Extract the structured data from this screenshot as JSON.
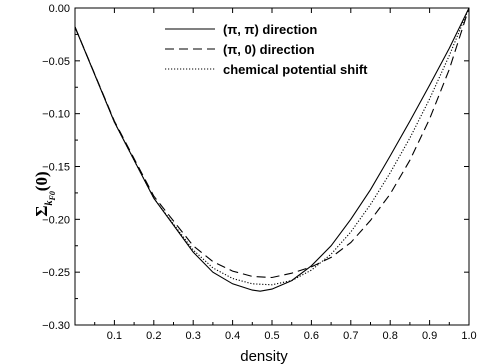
{
  "chart_data": {
    "type": "line",
    "xlabel": "density",
    "ylabel": {
      "symbol": "Σ",
      "subscript": "k",
      "sub_subscript": "F0",
      "argument": "(0)"
    },
    "xlim": [
      0.0,
      1.0
    ],
    "ylim": [
      -0.3,
      0.0
    ],
    "xticks": [
      0.1,
      0.2,
      0.3,
      0.4,
      0.5,
      0.6,
      0.7,
      0.8,
      0.9,
      1.0
    ],
    "xtick_labels": [
      "0.1",
      "0.2",
      "0.3",
      "0.4",
      "0.5",
      "0.6",
      "0.7",
      "0.8",
      "0.9",
      "1.0"
    ],
    "yticks": [
      0.0,
      -0.05,
      -0.1,
      -0.15,
      -0.2,
      -0.25,
      -0.3
    ],
    "ytick_labels": [
      "0.00",
      "−0.05",
      "−0.10",
      "−0.15",
      "−0.20",
      "−0.25",
      "−0.30"
    ],
    "grid": false,
    "legend_position": "top-center",
    "series": [
      {
        "name": "(π, π) direction",
        "style": "solid",
        "x": [
          0.0,
          0.1,
          0.2,
          0.3,
          0.35,
          0.4,
          0.45,
          0.47,
          0.5,
          0.55,
          0.6,
          0.65,
          0.7,
          0.75,
          0.8,
          0.85,
          0.9,
          0.95,
          1.0
        ],
        "y": [
          -0.018,
          -0.108,
          -0.18,
          -0.231,
          -0.25,
          -0.261,
          -0.267,
          -0.268,
          -0.266,
          -0.258,
          -0.244,
          -0.225,
          -0.2,
          -0.172,
          -0.14,
          -0.107,
          -0.073,
          -0.038,
          0.0
        ]
      },
      {
        "name": "(π, 0) direction",
        "style": "dashed",
        "x": [
          0.0,
          0.1,
          0.2,
          0.3,
          0.35,
          0.4,
          0.45,
          0.5,
          0.55,
          0.6,
          0.65,
          0.7,
          0.75,
          0.8,
          0.85,
          0.9,
          0.95,
          1.0
        ],
        "y": [
          -0.018,
          -0.107,
          -0.178,
          -0.225,
          -0.24,
          -0.249,
          -0.254,
          -0.255,
          -0.251,
          -0.245,
          -0.236,
          -0.222,
          -0.201,
          -0.176,
          -0.144,
          -0.105,
          -0.058,
          0.0
        ]
      },
      {
        "name": "chemical potential shift",
        "style": "dotted",
        "x": [
          0.0,
          0.1,
          0.2,
          0.3,
          0.35,
          0.4,
          0.45,
          0.5,
          0.55,
          0.6,
          0.65,
          0.7,
          0.75,
          0.8,
          0.85,
          0.9,
          0.95,
          1.0
        ],
        "y": [
          -0.018,
          -0.108,
          -0.18,
          -0.229,
          -0.246,
          -0.256,
          -0.261,
          -0.262,
          -0.258,
          -0.248,
          -0.233,
          -0.212,
          -0.186,
          -0.156,
          -0.123,
          -0.086,
          -0.045,
          0.0
        ]
      }
    ]
  }
}
